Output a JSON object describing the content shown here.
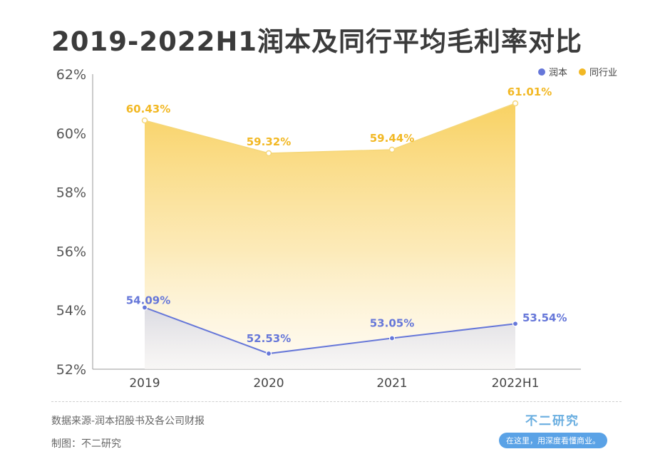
{
  "title": "2019-2022H1润本及同行平均毛利率对比",
  "source_text": "数据来源-润本招股书及各公司财报",
  "credit_text": "制图：不二研究",
  "brand": {
    "name": "不二研究",
    "slogan": "在这里，用深度看懂商业。"
  },
  "colors": {
    "runben": "#6677d9",
    "industry": "#f2b824",
    "industry_fill": "#f8cf5a",
    "runben_fill": "#c9cbd8"
  },
  "chart_data": {
    "type": "area",
    "categories": [
      "2019",
      "2020",
      "2021",
      "2022H1"
    ],
    "ylim": [
      52,
      62
    ],
    "y_ticks": [
      52,
      54,
      56,
      58,
      60,
      62
    ],
    "y_tick_labels": [
      "52%",
      "54%",
      "56%",
      "58%",
      "60%",
      "62%"
    ],
    "legend_position": "top-right",
    "series": [
      {
        "name": "润本",
        "values": [
          54.09,
          52.53,
          53.05,
          53.54
        ],
        "labels": [
          "54.09%",
          "52.53%",
          "53.05%",
          "53.54%"
        ]
      },
      {
        "name": "同行业",
        "values": [
          60.43,
          59.32,
          59.44,
          61.01
        ],
        "labels": [
          "60.43%",
          "59.32%",
          "59.44%",
          "61.01%"
        ]
      }
    ]
  }
}
